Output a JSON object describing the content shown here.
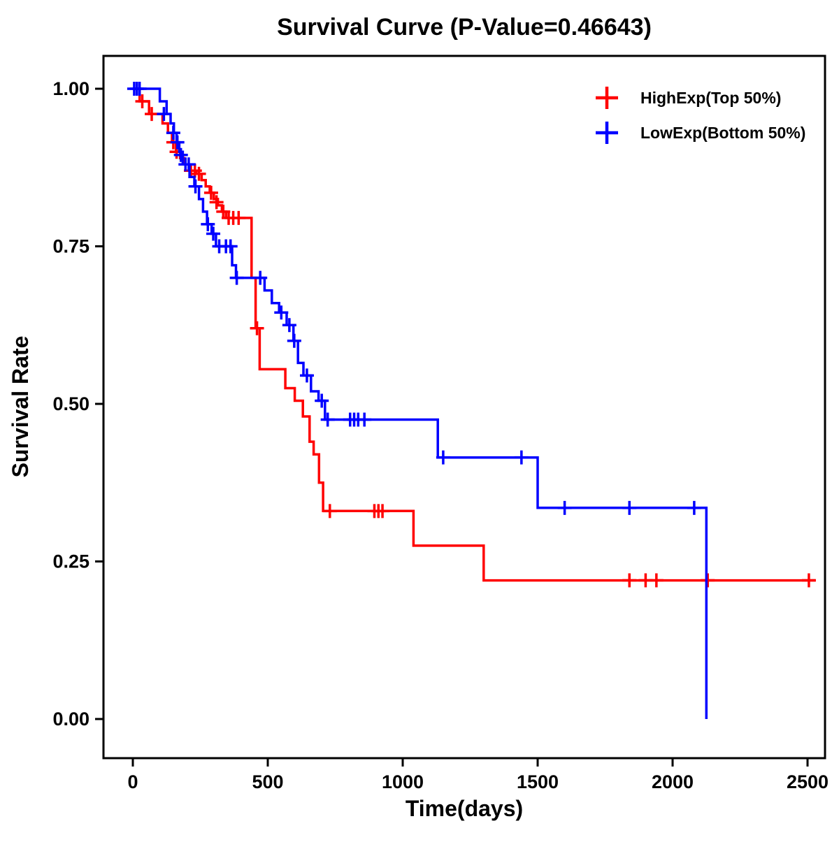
{
  "chart_data": {
    "type": "line",
    "subtype": "kaplan-meier-step",
    "title": "Survival Curve (P-Value=0.46643)",
    "p_value": "0.46643",
    "xlabel": "Time(days)",
    "ylabel": "Survival Rate",
    "xlim": [
      -110,
      2565
    ],
    "ylim": [
      -0.06,
      1.05
    ],
    "xticks": [
      0,
      500,
      1000,
      1500,
      2000,
      2500
    ],
    "xtick_labels": [
      "0",
      "500",
      "1000",
      "1500",
      "2000",
      "2500"
    ],
    "yticks": [
      0.0,
      0.25,
      0.5,
      0.75,
      1.0
    ],
    "ytick_labels": [
      "0.00",
      "0.25",
      "0.50",
      "0.75",
      "1.00"
    ],
    "grid": false,
    "legend_position": "top-right",
    "axis_color": "#000000",
    "background_color": "#ffffff",
    "series": [
      {
        "name": "HighExp(Top 50%)",
        "color": "#ff0000",
        "steps": [
          [
            0,
            1.0
          ],
          [
            25,
            0.98
          ],
          [
            60,
            0.96
          ],
          [
            110,
            0.945
          ],
          [
            130,
            0.93
          ],
          [
            145,
            0.915
          ],
          [
            160,
            0.9
          ],
          [
            175,
            0.89
          ],
          [
            190,
            0.88
          ],
          [
            210,
            0.87
          ],
          [
            235,
            0.865
          ],
          [
            255,
            0.855
          ],
          [
            270,
            0.845
          ],
          [
            285,
            0.835
          ],
          [
            300,
            0.825
          ],
          [
            315,
            0.815
          ],
          [
            330,
            0.805
          ],
          [
            345,
            0.795
          ],
          [
            440,
            0.7
          ],
          [
            455,
            0.62
          ],
          [
            470,
            0.555
          ],
          [
            565,
            0.525
          ],
          [
            600,
            0.505
          ],
          [
            630,
            0.48
          ],
          [
            655,
            0.44
          ],
          [
            670,
            0.42
          ],
          [
            690,
            0.375
          ],
          [
            705,
            0.33
          ],
          [
            1040,
            0.275
          ],
          [
            1300,
            0.22
          ],
          [
            2530,
            0.22
          ]
        ],
        "censors": [
          [
            35,
            0.98
          ],
          [
            70,
            0.96
          ],
          [
            150,
            0.915
          ],
          [
            162,
            0.9
          ],
          [
            215,
            0.87
          ],
          [
            230,
            0.87
          ],
          [
            245,
            0.865
          ],
          [
            290,
            0.835
          ],
          [
            310,
            0.82
          ],
          [
            335,
            0.805
          ],
          [
            355,
            0.795
          ],
          [
            372,
            0.795
          ],
          [
            392,
            0.795
          ],
          [
            460,
            0.62
          ],
          [
            730,
            0.33
          ],
          [
            895,
            0.33
          ],
          [
            910,
            0.33
          ],
          [
            925,
            0.33
          ],
          [
            1840,
            0.22
          ],
          [
            1900,
            0.22
          ],
          [
            1940,
            0.22
          ],
          [
            2130,
            0.22
          ],
          [
            2505,
            0.22
          ]
        ]
      },
      {
        "name": "LowExp(Bottom 50%)",
        "color": "#0000ff",
        "steps": [
          [
            0,
            1.0
          ],
          [
            100,
            0.98
          ],
          [
            125,
            0.96
          ],
          [
            140,
            0.945
          ],
          [
            152,
            0.93
          ],
          [
            162,
            0.915
          ],
          [
            172,
            0.9
          ],
          [
            185,
            0.88
          ],
          [
            210,
            0.86
          ],
          [
            228,
            0.845
          ],
          [
            245,
            0.825
          ],
          [
            260,
            0.805
          ],
          [
            275,
            0.785
          ],
          [
            292,
            0.77
          ],
          [
            308,
            0.75
          ],
          [
            368,
            0.72
          ],
          [
            382,
            0.7
          ],
          [
            488,
            0.68
          ],
          [
            515,
            0.66
          ],
          [
            542,
            0.645
          ],
          [
            570,
            0.625
          ],
          [
            595,
            0.6
          ],
          [
            612,
            0.565
          ],
          [
            632,
            0.545
          ],
          [
            660,
            0.52
          ],
          [
            688,
            0.505
          ],
          [
            712,
            0.475
          ],
          [
            1130,
            0.415
          ],
          [
            1500,
            0.335
          ],
          [
            2125,
            0.0
          ]
        ],
        "censors": [
          [
            5,
            1.0
          ],
          [
            15,
            1.0
          ],
          [
            25,
            1.0
          ],
          [
            115,
            0.96
          ],
          [
            150,
            0.93
          ],
          [
            165,
            0.915
          ],
          [
            178,
            0.895
          ],
          [
            195,
            0.88
          ],
          [
            207,
            0.88
          ],
          [
            232,
            0.845
          ],
          [
            278,
            0.785
          ],
          [
            298,
            0.77
          ],
          [
            320,
            0.75
          ],
          [
            345,
            0.75
          ],
          [
            362,
            0.75
          ],
          [
            385,
            0.7
          ],
          [
            472,
            0.7
          ],
          [
            550,
            0.645
          ],
          [
            580,
            0.625
          ],
          [
            598,
            0.6
          ],
          [
            645,
            0.545
          ],
          [
            700,
            0.505
          ],
          [
            722,
            0.475
          ],
          [
            805,
            0.475
          ],
          [
            820,
            0.475
          ],
          [
            835,
            0.475
          ],
          [
            858,
            0.475
          ],
          [
            1150,
            0.415
          ],
          [
            1440,
            0.415
          ],
          [
            1600,
            0.335
          ],
          [
            1840,
            0.335
          ],
          [
            2080,
            0.335
          ]
        ]
      }
    ]
  }
}
